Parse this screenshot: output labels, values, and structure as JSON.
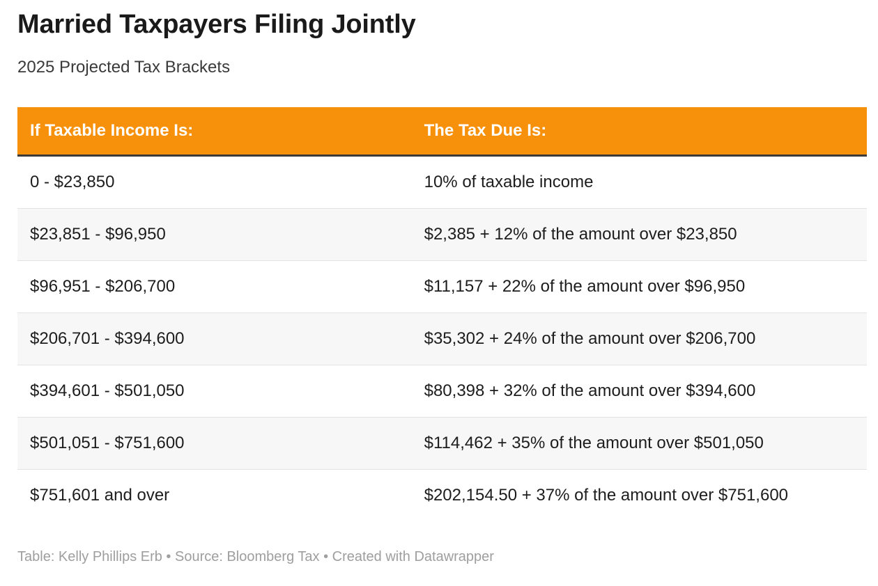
{
  "chart_data": {
    "type": "table",
    "title": "Married Taxpayers Filing Jointly",
    "subtitle": "2025 Projected Tax Brackets",
    "columns": [
      "If Taxable Income Is:",
      "The Tax Due Is:"
    ],
    "rows": [
      [
        "0 - $23,850",
        "10% of taxable income"
      ],
      [
        "$23,851 - $96,950",
        "$2,385 + 12% of the amount over $23,850"
      ],
      [
        "$96,951 - $206,700",
        "$11,157 + 22% of the amount over $96,950"
      ],
      [
        "$206,701 - $394,600",
        "$35,302 + 24% of the amount over $206,700"
      ],
      [
        "$394,601 - $501,050",
        "$80,398 + 32% of the amount over $394,600"
      ],
      [
        "$501,051 - $751,600",
        "$114,462 + 35% of the amount over $501,050"
      ],
      [
        "$751,601 and over",
        "$202,154.50 + 37% of the amount over $751,600"
      ]
    ],
    "legend_position": "none",
    "grid": "row-stripes"
  },
  "footer": {
    "attribution": "Table: Kelly Phillips Erb • Source: Bloomberg Tax • Created with Datawrapper"
  },
  "colors": {
    "header_bg": "#F7910B",
    "header_text": "#ffffff",
    "header_underline": "#3b3b3b",
    "row_stripe_bg": "#f7f7f7",
    "row_divider": "#e2e2e2",
    "body_text": "#1d1d1d",
    "title_text": "#1a1a1a",
    "subtitle_text": "#3a3a3a",
    "attribution_text": "#9e9e9e",
    "page_bg": "#ffffff"
  }
}
